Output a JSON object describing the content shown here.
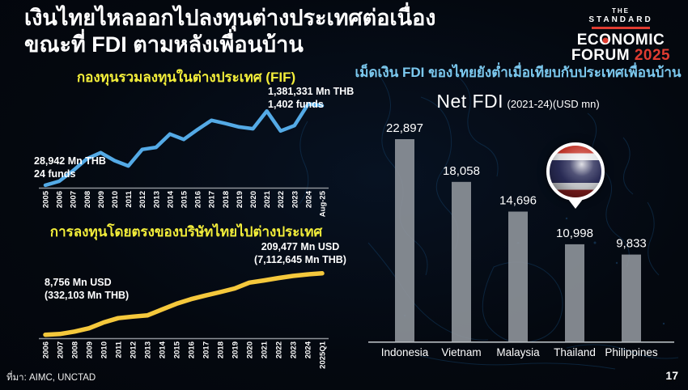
{
  "slide": {
    "title_line1": "เงินไทยไหลออกไปลงทุนต่างประเทศต่อเนื่อง",
    "title_line2": "ขณะที่ FDI ตามหลังเพื่อนบ้าน",
    "source": "ที่มา: AIMC, UNCTAD",
    "page_number": "17"
  },
  "logo": {
    "the": "THE",
    "standard": "STANDARD",
    "economic_pre": "EC",
    "economic_o": "O",
    "economic_post": "NOMIC",
    "forum": "FORUM ",
    "year": "2025",
    "accent_color": "#e03c31"
  },
  "colors": {
    "background": "#04080f",
    "accent_yellow": "#f3ee3a",
    "accent_blue": "#7cc9ef",
    "line_blue": "#54aae6",
    "line_yellow": "#f5c83c",
    "bar_gray": "#8f959b",
    "logo_red": "#e03c31",
    "map_line": "#123a5e"
  },
  "chart_data": [
    {
      "id": "fif",
      "type": "line",
      "title": "กองทุนรวมลงทุนในต่างประเทศ (FIF)",
      "unit": "Mn THB",
      "x": [
        "2005",
        "2006",
        "2007",
        "2008",
        "2009",
        "2010",
        "2011",
        "2012",
        "2013",
        "2014",
        "2015",
        "2016",
        "2017",
        "2018",
        "2019",
        "2020",
        "2021",
        "2022",
        "2023",
        "2024",
        "Aug-25"
      ],
      "values": [
        28942,
        96000,
        275000,
        478000,
        582000,
        447000,
        356000,
        637000,
        673000,
        898000,
        808000,
        975000,
        1133000,
        1079000,
        1020000,
        989000,
        1291000,
        952000,
        1043000,
        1413000,
        1381331
      ],
      "ylim": [
        0,
        1500000
      ],
      "grid": false,
      "line_color": "#54aae6",
      "start_label": {
        "line1": "28,942 Mn THB",
        "line2": "24 funds"
      },
      "end_label": {
        "line1": "1,381,331 Mn THB",
        "line2": "1,402 funds"
      }
    },
    {
      "id": "outward-di",
      "type": "line",
      "title": "การลงทุนโดยตรงของบริษัทไทยไปต่างประเทศ",
      "unit": "Mn USD",
      "x": [
        "2006",
        "2007",
        "2008",
        "2009",
        "2010",
        "2011",
        "2012",
        "2013",
        "2014",
        "2015",
        "2016",
        "2017",
        "2018",
        "2019",
        "2020",
        "2021",
        "2022",
        "2023",
        "2024",
        "2025Q1"
      ],
      "values": [
        8756,
        11000,
        19000,
        30000,
        49000,
        63000,
        68000,
        72000,
        91000,
        110000,
        125000,
        137000,
        148000,
        160000,
        179000,
        186000,
        194000,
        201000,
        206000,
        209477
      ],
      "ylim": [
        0,
        230000
      ],
      "grid": false,
      "line_color": "#f5c83c",
      "start_label": {
        "line1": "8,756 Mn USD",
        "line2": "(332,103 Mn THB)"
      },
      "end_label": {
        "line1": "209,477 Mn USD",
        "line2": "(7,112,645 Mn THB)"
      }
    },
    {
      "id": "net-fdi",
      "type": "bar",
      "title": "เม็ดเงิน FDI ของไทยยังต่ำเมื่อเทียบกับประเทศเพื่อนบ้าน",
      "subtitle": "Net FDI",
      "subtitle_detail": "(2021-24)(USD mn)",
      "categories": [
        "Indonesia",
        "Vietnam",
        "Malaysia",
        "Thailand",
        "Philippines"
      ],
      "values": [
        22897,
        18058,
        14696,
        10998,
        9833
      ],
      "value_labels": [
        "22,897",
        "18,058",
        "14,696",
        "10,998",
        "9,833"
      ],
      "highlight_category": "Thailand",
      "highlight_marker": "thailand-flag-pin",
      "bar_color": "#8f959b",
      "ylim": [
        0,
        25000
      ],
      "grid": false
    }
  ]
}
